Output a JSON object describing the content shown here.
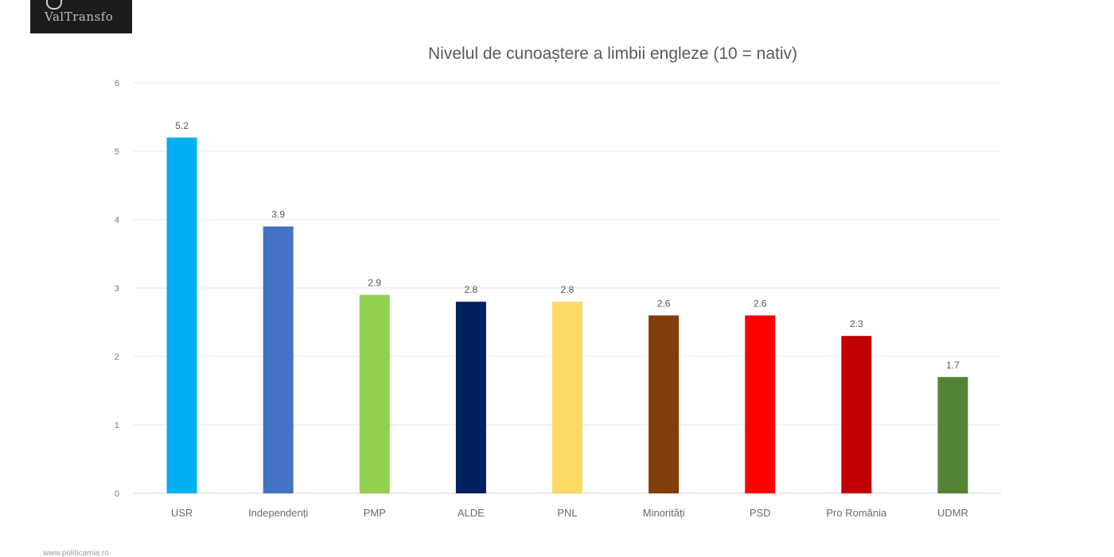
{
  "logo": {
    "text": "ValTransfo"
  },
  "chart_data": {
    "type": "bar",
    "title": "Nivelul de cunoaștere a limbii engleze (10 = nativ)",
    "xlabel": "",
    "ylabel": "",
    "ylim": [
      0,
      6
    ],
    "yticks": [
      0,
      1,
      2,
      3,
      4,
      5,
      6
    ],
    "grid": true,
    "legend": "none",
    "categories": [
      "USR",
      "Independenți",
      "PMP",
      "ALDE",
      "PNL",
      "Minorități",
      "PSD",
      "Pro România",
      "UDMR"
    ],
    "values": [
      5.2,
      3.9,
      2.9,
      2.8,
      2.8,
      2.6,
      2.6,
      2.3,
      1.7
    ],
    "data_labels": [
      "5.2",
      "3.9",
      "2.9",
      "2.8",
      "2.8",
      "2.6",
      "2.6",
      "2.3",
      "1.7"
    ],
    "colors": [
      "#00b0f0",
      "#4472c4",
      "#92d050",
      "#002060",
      "#ffd966",
      "#833c0b",
      "#ff0000",
      "#c00000",
      "#548235"
    ]
  },
  "footer": {
    "url": "www.politicamia.ro"
  }
}
